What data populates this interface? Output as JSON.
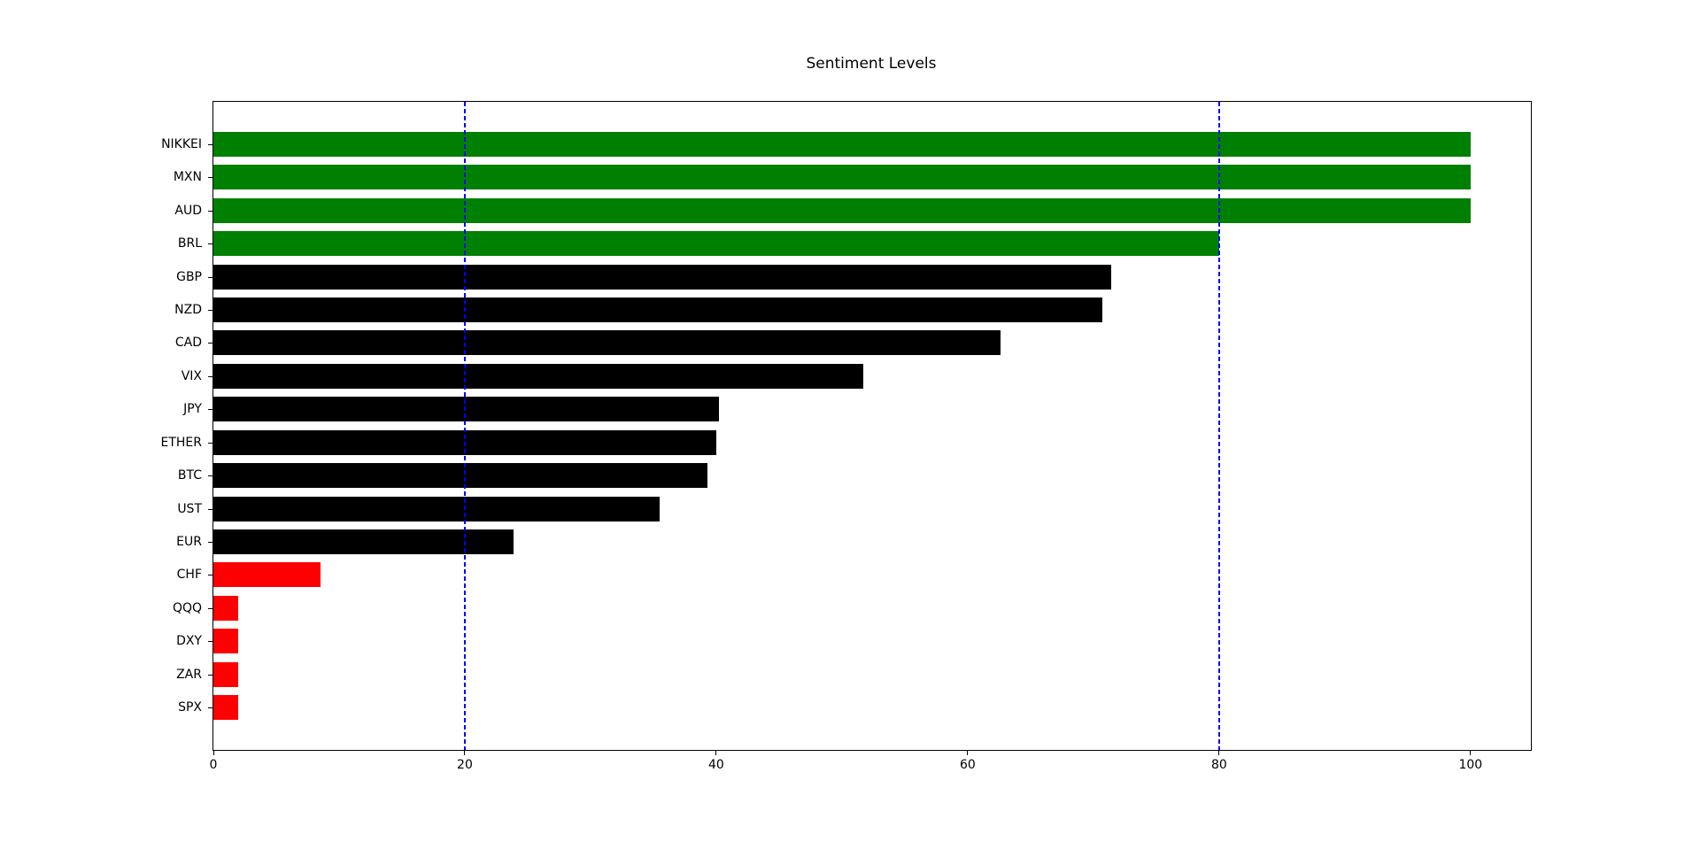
{
  "figure": {
    "background": "#ffffff"
  },
  "chart_data": {
    "type": "bar",
    "orientation": "horizontal",
    "title": "Sentiment Levels",
    "xlabel": "",
    "ylabel": "",
    "categories": [
      "NIKKEI",
      "MXN",
      "AUD",
      "BRL",
      "GBP",
      "NZD",
      "CAD",
      "VIX",
      "JPY",
      "ETHER",
      "BTC",
      "UST",
      "EUR",
      "CHF",
      "QQQ",
      "DXY",
      "ZAR",
      "SPX"
    ],
    "values": [
      100,
      100,
      100,
      80,
      71.4,
      70.7,
      62.6,
      51.7,
      40.2,
      40.0,
      39.3,
      35.5,
      23.9,
      8.5,
      2,
      2,
      2,
      2
    ],
    "bar_colors": [
      "#008000",
      "#008000",
      "#008000",
      "#008000",
      "#000000",
      "#000000",
      "#000000",
      "#000000",
      "#000000",
      "#000000",
      "#000000",
      "#000000",
      "#000000",
      "#ff0000",
      "#ff0000",
      "#ff0000",
      "#ff0000",
      "#ff0000"
    ],
    "xticks": [
      0,
      20,
      40,
      60,
      80,
      100
    ],
    "xlim": [
      0,
      104.8
    ],
    "grid": false,
    "legend": null,
    "reference_lines": [
      {
        "x": 20,
        "color": "#0000ff",
        "style": "dashed"
      },
      {
        "x": 80,
        "color": "#0000ff",
        "style": "dashed"
      }
    ],
    "axis_color": "#000000",
    "plot_background": "#ffffff"
  }
}
